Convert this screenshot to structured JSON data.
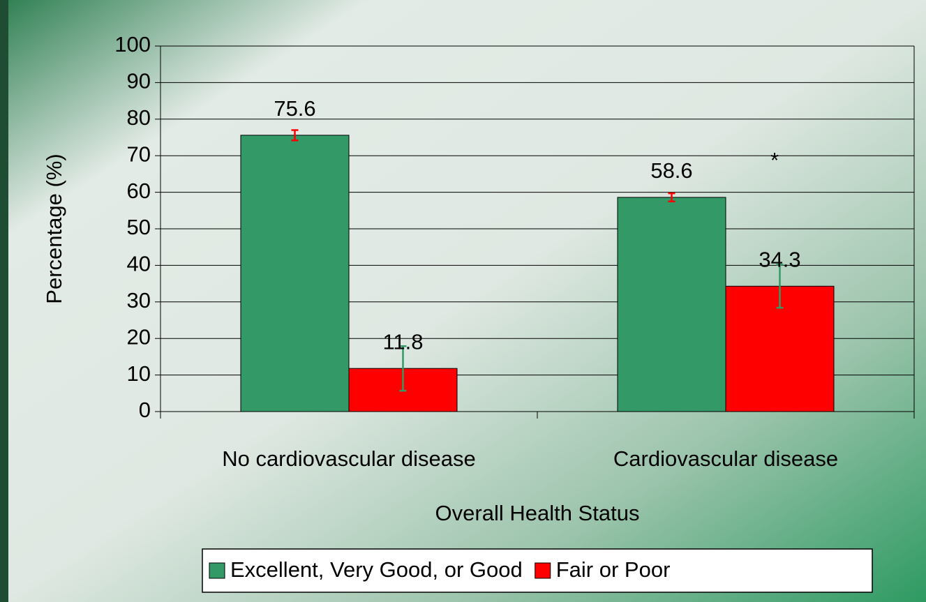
{
  "chart_data": {
    "type": "bar",
    "xlabel": "Overall Health Status",
    "ylabel": "Percentage (%)",
    "categories": [
      "No cardiovascular disease",
      "Cardiovascular disease"
    ],
    "series": [
      {
        "name": "Excellent, Very Good, or Good",
        "color": "#339966",
        "error_color": "#ff0000",
        "values": [
          75.6,
          58.6
        ],
        "errors": [
          1.4,
          1.1
        ]
      },
      {
        "name": "Fair or Poor",
        "color": "#ff0000",
        "error_color": "#339966",
        "values": [
          11.8,
          34.3
        ],
        "errors": [
          6.1,
          5.9
        ]
      }
    ],
    "annotations": [
      "*"
    ],
    "ylim": [
      0,
      100
    ],
    "yticks": [
      0,
      10,
      20,
      30,
      40,
      50,
      60,
      70,
      80,
      90,
      100
    ],
    "grid": true,
    "legend": "bottom"
  }
}
